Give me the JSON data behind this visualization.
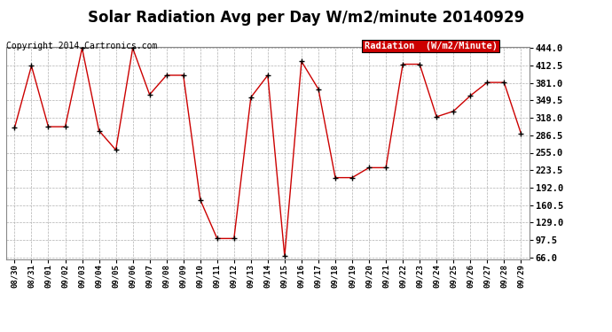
{
  "title": "Solar Radiation Avg per Day W/m2/minute 20140929",
  "copyright": "Copyright 2014 Cartronics.com",
  "legend_label": "Radiation  (W/m2/Minute)",
  "dates": [
    "08/30",
    "08/31",
    "09/01",
    "09/02",
    "09/03",
    "09/04",
    "09/05",
    "09/06",
    "09/07",
    "09/08",
    "09/09",
    "09/10",
    "09/11",
    "09/12",
    "09/13",
    "09/14",
    "09/15",
    "09/16",
    "09/17",
    "09/18",
    "09/19",
    "09/20",
    "09/21",
    "09/22",
    "09/23",
    "09/24",
    "09/25",
    "09/26",
    "09/27",
    "09/28",
    "09/29"
  ],
  "values": [
    300,
    412,
    302,
    302,
    444,
    295,
    260,
    444,
    360,
    395,
    395,
    170,
    100,
    100,
    355,
    395,
    68,
    420,
    370,
    210,
    210,
    228,
    228,
    415,
    415,
    320,
    330,
    358,
    382,
    382,
    290
  ],
  "line_color": "#cc0000",
  "marker_color": "#000000",
  "bg_color": "#ffffff",
  "plot_bg": "#ffffff",
  "grid_color": "#b0b0b0",
  "legend_bg": "#cc0000",
  "legend_text_color": "#ffffff",
  "ymin": 66.0,
  "ymax": 444.0,
  "yticks": [
    66.0,
    97.5,
    129.0,
    160.5,
    192.0,
    223.5,
    255.0,
    286.5,
    318.0,
    349.5,
    381.0,
    412.5,
    444.0
  ],
  "title_fontsize": 12,
  "copyright_fontsize": 7,
  "tick_fontsize": 7.5,
  "xtick_fontsize": 6.5,
  "legend_fontsize": 7.5
}
